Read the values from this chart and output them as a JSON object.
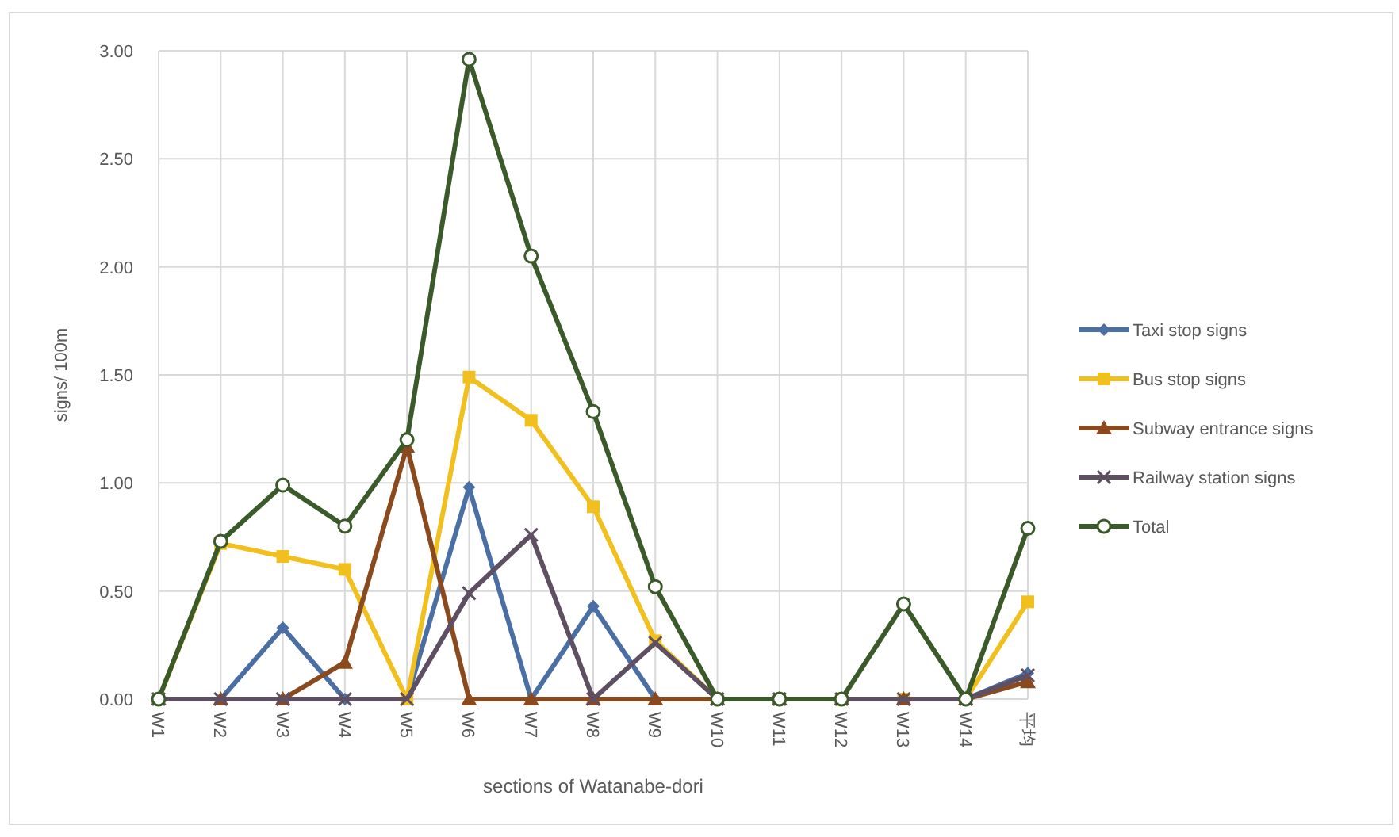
{
  "chart_data": {
    "type": "line",
    "xlabel": "sections of Watanabe-dori",
    "ylabel": "signs/ 100m",
    "categories": [
      "W1",
      "W2",
      "W3",
      "W4",
      "W5",
      "W6",
      "W7",
      "W8",
      "W9",
      "W10",
      "W11",
      "W12",
      "W13",
      "W14",
      "平均"
    ],
    "series": [
      {
        "name": "Taxi stop signs",
        "color": "#4a6fa5",
        "marker": "diamond",
        "values": [
          0,
          0,
          0.33,
          0,
          0,
          0.98,
          0,
          0.43,
          0,
          0,
          0,
          0,
          0,
          0,
          0.12
        ]
      },
      {
        "name": "Bus stop signs",
        "color": "#f2c01e",
        "marker": "square",
        "values": [
          0,
          0.72,
          0.66,
          0.6,
          0,
          1.49,
          1.29,
          0.89,
          0.27,
          0,
          0,
          0,
          0,
          0,
          0.45
        ]
      },
      {
        "name": "Subway entrance signs",
        "color": "#8b4a1e",
        "marker": "triangle",
        "values": [
          0,
          0,
          0,
          0.17,
          1.17,
          0,
          0,
          0,
          0,
          0,
          0,
          0,
          0,
          0,
          0.08
        ]
      },
      {
        "name": "Railway station signs",
        "color": "#5e4f63",
        "marker": "cross",
        "values": [
          0,
          0,
          0,
          0,
          0,
          0.49,
          0.76,
          0,
          0.26,
          0,
          0,
          0,
          0,
          0,
          0.11
        ]
      },
      {
        "name": "Total",
        "color": "#3b5a2a",
        "marker": "circle",
        "values": [
          0,
          0.73,
          0.99,
          0.8,
          1.2,
          2.96,
          2.05,
          1.33,
          0.52,
          0,
          0,
          0,
          0.44,
          0,
          0.79
        ]
      }
    ],
    "ylim": [
      0,
      3
    ],
    "yticks": [
      {
        "value": 0,
        "label": "0.00"
      },
      {
        "value": 0.5,
        "label": "0.50"
      },
      {
        "value": 1,
        "label": "1.00"
      },
      {
        "value": 1.5,
        "label": "1.50"
      },
      {
        "value": 2,
        "label": "2.00"
      },
      {
        "value": 2.5,
        "label": "2.50"
      },
      {
        "value": 3,
        "label": "3.00"
      }
    ],
    "grid": true,
    "legend": "right"
  }
}
